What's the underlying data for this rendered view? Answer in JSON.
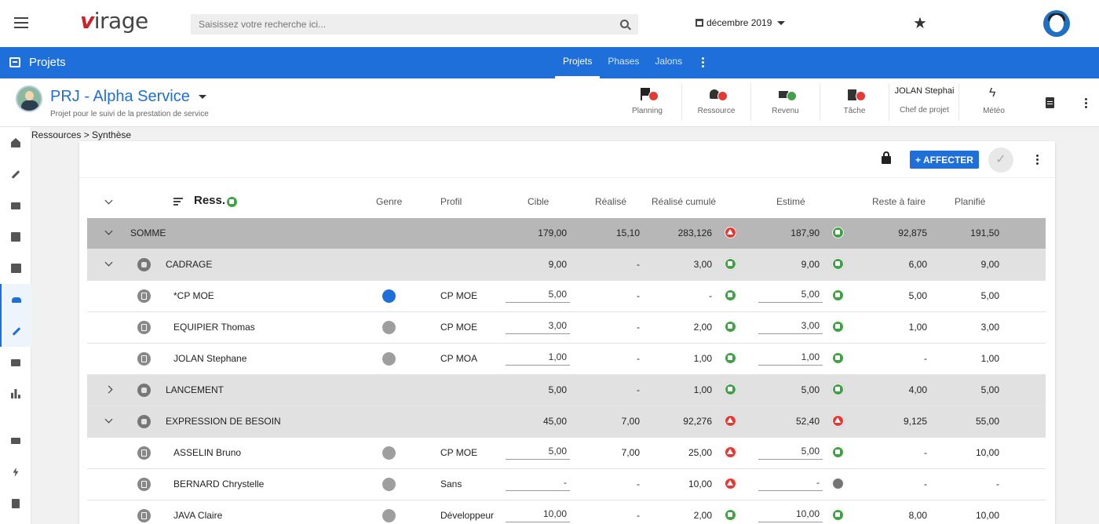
{
  "app": {
    "logo_v": "v",
    "logo_rest": "irage",
    "search_placeholder": "Saisissez votre recherche ici...",
    "period": "décembre 2019"
  },
  "module": {
    "title": "Projets",
    "tabs": [
      {
        "label": "Projets",
        "active": true
      },
      {
        "label": "Phases",
        "active": false
      },
      {
        "label": "Jalons",
        "active": false
      }
    ]
  },
  "project": {
    "name": "PRJ - Alpha Service",
    "subtitle": "Projet pour le suivi de la prestation de service",
    "kpis": [
      {
        "label": "Planning",
        "status": "warn"
      },
      {
        "label": "Ressource",
        "status": "warn"
      },
      {
        "label": "Revenu",
        "status": "ok"
      },
      {
        "label": "Tâche",
        "status": "warn"
      }
    ],
    "manager_name": "JOLAN Stephai",
    "manager_label": "Chef de projet",
    "meteo_label": "Météo"
  },
  "breadcrumb": "Ressources > Synthèse",
  "toolbar": {
    "affect_label": "+ AFFECTER",
    "check_glyph": "✓"
  },
  "table": {
    "headers": {
      "ress": "Ress.",
      "genre": "Genre",
      "profil": "Profil",
      "cible": "Cible",
      "realise": "Réalisé",
      "realise_cumule": "Réalisé cumulé",
      "estime": "Estimé",
      "reste": "Reste à faire",
      "planifie": "Planifié"
    },
    "rows": [
      {
        "type": "sum",
        "label": "SOMME",
        "cible": "179,00",
        "realise": "15,10",
        "cumule": "283,126",
        "cumule_status": "warn",
        "estime": "187,90",
        "estime_status": "ok",
        "reste": "92,875",
        "planifie": "191,50"
      },
      {
        "type": "group",
        "expanded": true,
        "label": "CADRAGE",
        "cible": "9,00",
        "realise": "-",
        "cumule": "3,00",
        "cumule_status": "ok",
        "estime": "9,00",
        "estime_status": "ok",
        "reste": "6,00",
        "planifie": "9,00"
      },
      {
        "type": "detail",
        "label": "*CP MOE",
        "genre": "#1e6fd9",
        "profil": "CP MOE",
        "cible": "5,00",
        "realise": "-",
        "cumule": "-",
        "cumule_status": "ok",
        "estime": "5,00",
        "estime_status": "ok",
        "reste": "5,00",
        "planifie": "5,00"
      },
      {
        "type": "detail",
        "label": "EQUIPIER Thomas",
        "genre": "#9e9e9e",
        "profil": "CP MOE",
        "cible": "3,00",
        "realise": "-",
        "cumule": "2,00",
        "cumule_status": "ok",
        "estime": "3,00",
        "estime_status": "ok",
        "reste": "1,00",
        "planifie": "3,00"
      },
      {
        "type": "detail",
        "label": "JOLAN Stephane",
        "genre": "#9e9e9e",
        "profil": "CP MOA",
        "cible": "1,00",
        "realise": "-",
        "cumule": "1,00",
        "cumule_status": "ok",
        "estime": "1,00",
        "estime_status": "ok",
        "reste": "-",
        "planifie": "1,00"
      },
      {
        "type": "group",
        "expanded": false,
        "label": "LANCEMENT",
        "cible": "5,00",
        "realise": "-",
        "cumule": "1,00",
        "cumule_status": "ok",
        "estime": "5,00",
        "estime_status": "ok",
        "reste": "4,00",
        "planifie": "5,00"
      },
      {
        "type": "group",
        "expanded": true,
        "label": "EXPRESSION DE BESOIN",
        "cible": "45,00",
        "realise": "7,00",
        "cumule": "92,276",
        "cumule_status": "warn",
        "estime": "52,40",
        "estime_status": "warn",
        "reste": "9,125",
        "planifie": "55,00"
      },
      {
        "type": "detail",
        "label": "ASSELIN Bruno",
        "genre": "#9e9e9e",
        "profil": "CP MOE",
        "cible": "5,00",
        "realise": "7,00",
        "cumule": "25,00",
        "cumule_status": "warn",
        "estime": "5,00",
        "estime_status": "ok",
        "reste": "-",
        "planifie": "10,00"
      },
      {
        "type": "detail",
        "label": "BERNARD Chrystelle",
        "genre": "#9e9e9e",
        "profil": "Sans",
        "cible": "-",
        "realise": "-",
        "cumule": "10,00",
        "cumule_status": "warn",
        "estime": "-",
        "estime_status": "neutral",
        "reste": "-",
        "planifie": "-"
      },
      {
        "type": "detail",
        "label": "JAVA Claire",
        "genre": "#9e9e9e",
        "profil": "Développeur",
        "cible": "10,00",
        "realise": "-",
        "cumule": "2,00",
        "cumule_status": "ok",
        "estime": "10,00",
        "estime_status": "ok",
        "reste": "8,00",
        "planifie": "10,00"
      }
    ]
  },
  "colors": {
    "accent": "#1e6fd9",
    "ok": "#43a047",
    "warn": "#e53935",
    "neutral": "#757575"
  }
}
